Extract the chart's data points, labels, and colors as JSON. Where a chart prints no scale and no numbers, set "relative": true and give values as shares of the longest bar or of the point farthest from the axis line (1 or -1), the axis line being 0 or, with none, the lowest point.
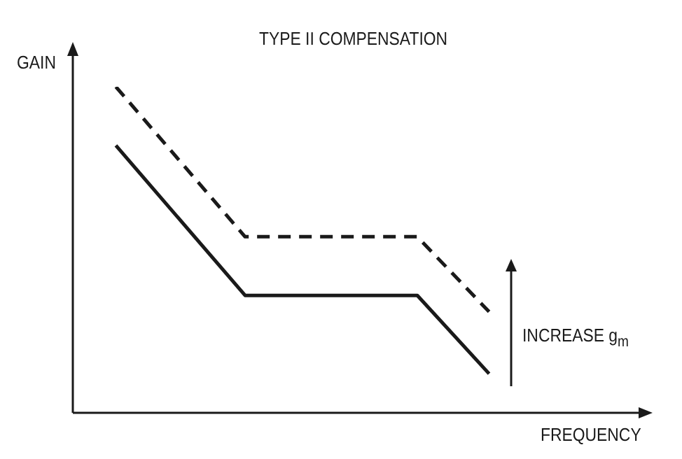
{
  "chart_data": {
    "type": "line",
    "title": "TYPE II COMPENSATION",
    "xlabel": "FREQUENCY",
    "ylabel": "GAIN",
    "relative": true,
    "legend": false,
    "marker": "none",
    "categories": [
      null,
      null,
      null,
      null,
      null,
      null,
      null,
      null,
      null,
      null,
      null,
      null,
      null,
      null,
      null,
      null,
      null,
      null,
      null,
      null,
      null,
      null,
      null,
      null,
      null,
      null,
      null,
      null,
      null,
      null,
      null,
      null,
      null,
      null,
      null,
      null,
      null,
      null,
      null,
      null,
      null
    ],
    "series": [
      {
        "color": "#1a1a1a",
        "line_style": "dashed",
        "values": [
          null,
          null,
          null,
          1,
          null,
          null,
          null,
          null,
          null,
          null,
          null,
          null,
          0.54,
          null,
          null,
          null,
          null,
          null,
          null,
          null,
          null,
          null,
          null,
          null,
          0.54,
          null,
          null,
          null,
          null,
          0.31,
          null,
          null,
          null,
          null,
          null,
          null,
          null,
          null,
          null,
          null,
          null
        ]
      },
      {
        "color": "#1a1a1a",
        "line_style": "solid",
        "values": [
          null,
          null,
          null,
          0.82,
          null,
          null,
          null,
          null,
          null,
          null,
          null,
          null,
          0.36,
          null,
          null,
          null,
          null,
          null,
          null,
          null,
          null,
          null,
          null,
          null,
          0.36,
          null,
          null,
          null,
          null,
          0.12,
          null,
          null,
          null,
          null,
          null,
          null,
          null,
          null,
          null,
          null,
          null
        ]
      }
    ],
    "annotations": [
      "INCREASE g$_{m}$"
    ]
  }
}
